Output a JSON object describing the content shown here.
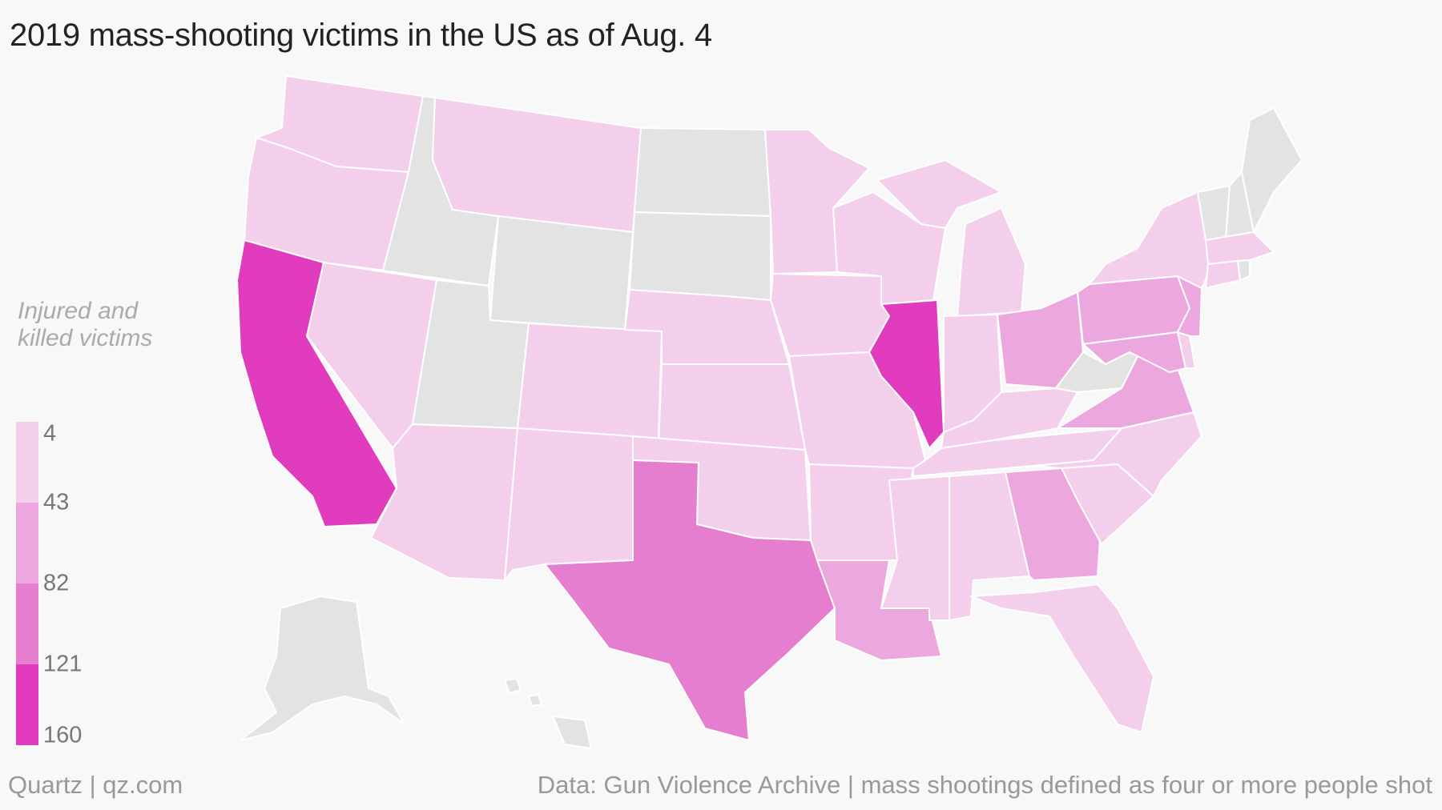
{
  "title": "2019 mass-shooting victims in the US as of Aug. 4",
  "legend": {
    "title_line1": "Injured and",
    "title_line2": "killed victims",
    "ticks": [
      "4",
      "43",
      "82",
      "121",
      "160"
    ],
    "colors": [
      "#f3cfec",
      "#eca8de",
      "#e67ecf",
      "#e03cbd"
    ]
  },
  "no_data_color": "#e3e3e3",
  "footer": {
    "left": "Quartz | qz.com",
    "right": "Data: Gun Violence Archive | mass shootings defined as four or more people shot"
  },
  "chart_data": {
    "type": "choropleth",
    "unit": "Injured and killed victims",
    "scale_breaks": [
      4,
      43,
      82,
      121,
      160
    ],
    "state_bins": {
      "WA": 0,
      "OR": 0,
      "NV": 0,
      "AZ": 0,
      "NM": 0,
      "CO": 0,
      "MT": 0,
      "NE": 0,
      "KS": 0,
      "OK": 0,
      "MN": 0,
      "IA": 0,
      "MO": 0,
      "AR": 0,
      "WI": 0,
      "MI": 0,
      "IN": 0,
      "KY": 0,
      "TN": 0,
      "MS": 0,
      "AL": 0,
      "FL": 0,
      "SC": 0,
      "NC": 0,
      "NY": 0,
      "MA": 0,
      "CT": 0,
      "DE": 0,
      "OH": 1,
      "PA": 1,
      "NJ": 1,
      "MD": 1,
      "VA": 1,
      "GA": 1,
      "LA": 1,
      "TX": 2,
      "CA": 3,
      "IL": 3,
      "ID": null,
      "WY": null,
      "UT": null,
      "ND": null,
      "SD": null,
      "WV": null,
      "VT": null,
      "NH": null,
      "ME": null,
      "RI": null,
      "AK": null,
      "HI": null
    }
  }
}
